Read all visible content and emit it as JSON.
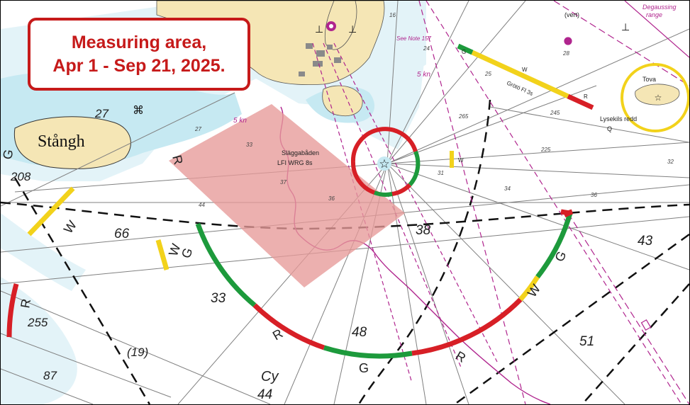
{
  "callout": {
    "line1": "Measuring area,",
    "line2": "Apr 1 - Sep 21, 2025."
  },
  "places": {
    "island_main": "Stångh",
    "island_east": "Tova",
    "lighthouse_name": "Släggabåden",
    "lighthouse_char": "LFI WRG 8s",
    "roads": "Lysekils redd",
    "roads_q": "Q",
    "groto_light": "Grötö Fl 3s",
    "note": "See Note 157",
    "speed_top": "5 kn",
    "speed_left": "5 kn",
    "vert": "(vert)",
    "degaussing_1": "Degaussing",
    "degaussing_2": "range",
    "cy": "Cy"
  },
  "depths": {
    "d66": "66",
    "d33": "33",
    "d48": "48",
    "d51": "51",
    "d43": "43",
    "d38": "38",
    "d44": "44",
    "d19": "(19)",
    "d87": "87",
    "d255": "255",
    "d208": "208",
    "d27": "27",
    "d24": "24",
    "d25": "25",
    "d265": "265",
    "d28": "28",
    "d245": "245",
    "d225": "225",
    "d33s": "33",
    "d37s": "37",
    "d36s": "36",
    "d31": "31",
    "d34": "34",
    "d36b": "36",
    "d32": "32",
    "d27s": "27",
    "d44s": "44",
    "d16": "16"
  },
  "sectors": {
    "g1": "G",
    "w1": "W",
    "g2": "G",
    "r1": "R",
    "g3": "G",
    "r2": "R",
    "w2": "W",
    "g4": "G",
    "r_left": "R",
    "w_left": "W",
    "g_left": "G",
    "r_top": "R",
    "w_top": "W",
    "g_top": "G",
    "r_bar": "R",
    "w_bar": "W",
    "g_bar": "G",
    "w_small": "W"
  },
  "colors": {
    "sea": "#ffffff",
    "shallow": "#c6e9f2",
    "mid": "#e3f3f8",
    "land": "#f5e6b5",
    "sector_green": "#1d9a3c",
    "sector_red": "#d71f26",
    "sector_yellow": "#f2d21b",
    "magenta": "#b0258e",
    "measuring_area": "#e79a98",
    "callout_red": "#c61a1a"
  }
}
